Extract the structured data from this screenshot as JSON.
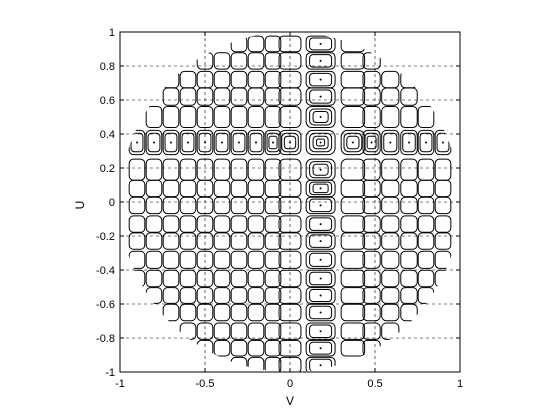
{
  "chart_data": {
    "type": "contour",
    "title": "",
    "xlabel": "V",
    "ylabel": "U",
    "xlim": [
      -1,
      1
    ],
    "ylim": [
      -1,
      1
    ],
    "xticks": [
      -1,
      -0.5,
      0,
      0.5,
      1
    ],
    "xtick_labels": [
      "-1",
      "-0.5",
      "0",
      "0.5",
      "1"
    ],
    "yticks": [
      1,
      0.8,
      0.6,
      0.4,
      0.2,
      0,
      -0.2,
      -0.4,
      -0.6,
      -0.8,
      -1
    ],
    "ytick_labels": [
      "1",
      "0.8",
      "0.6",
      "0.4",
      "0.2",
      "0",
      "-0.2",
      "-0.4",
      "-0.6",
      "-0.8",
      "-1"
    ],
    "grid": true,
    "region": "unit circle (V^2 + U^2 <= 1)",
    "contour_color": "#000000",
    "lobe_columns_v": [
      -0.9,
      -0.8,
      -0.7,
      -0.6,
      -0.5,
      -0.4,
      -0.3,
      -0.2,
      -0.1,
      0.0,
      0.18,
      0.37,
      0.48,
      0.59,
      0.7,
      0.8,
      0.9
    ],
    "lobe_rows_u": [
      0.93,
      0.83,
      0.72,
      0.62,
      0.5,
      0.35,
      0.19,
      0.08,
      -0.02,
      -0.13,
      -0.23,
      -0.34,
      -0.45,
      -0.55,
      -0.65,
      -0.76,
      -0.86,
      -0.96
    ],
    "main_lobe": {
      "v": 0.18,
      "u": 0.3
    }
  }
}
